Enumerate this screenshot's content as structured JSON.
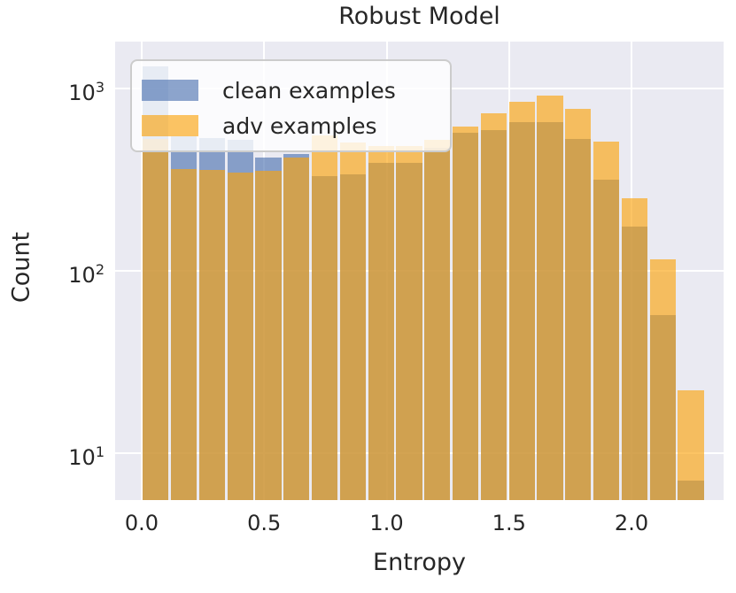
{
  "title": "Robust Model",
  "xlabel": "Entropy",
  "ylabel": "Count",
  "legend": {
    "items": [
      {
        "label": "clean examples",
        "series": "clean"
      },
      {
        "label": "adv examples",
        "series": "adv"
      }
    ]
  },
  "colors": {
    "plot_background": "#eaeaf2",
    "gridline": "#ffffff",
    "clean_fill": "rgba(76,114,176,0.64)",
    "adv_fill": "rgba(250,163,12,0.64)",
    "clean_base": "#4C72B0",
    "adv_base": "#FAA30C",
    "text": "#262626",
    "legend_background": "rgba(255,255,255,0.8)",
    "legend_border": "#cccccc"
  },
  "chart_data": {
    "type": "histogram",
    "subtype": "overlaid-histograms-log-y",
    "title": "Robust Model",
    "xlabel": "Entropy",
    "ylabel": "Count",
    "bin_start": 0.0,
    "bin_width": 0.115,
    "bin_count": 20,
    "bin_edges": [
      0.0,
      0.115,
      0.23,
      0.345,
      0.46,
      0.575,
      0.69,
      0.805,
      0.92,
      1.035,
      1.15,
      1.265,
      1.38,
      1.495,
      1.61,
      1.725,
      1.84,
      1.955,
      2.07,
      2.185,
      2.3
    ],
    "series": [
      {
        "name": "clean examples",
        "values": [
          1320,
          545,
          533,
          520,
          420,
          437,
          330,
          338,
          390,
          390,
          470,
          570,
          592,
          657,
          654,
          530,
          316,
          174,
          57,
          7
        ]
      },
      {
        "name": "adv examples",
        "values": [
          530,
          363,
          358,
          344,
          354,
          420,
          550,
          508,
          483,
          483,
          520,
          618,
          733,
          845,
          917,
          776,
          512,
          250,
          115,
          22
        ]
      }
    ],
    "y_scale": "log",
    "ylim": [
      5.5,
      1810
    ],
    "xlim": [
      -0.1085,
      2.376
    ],
    "grid": true,
    "legend_position": "upper left",
    "x_ticks": [
      {
        "value": 0.0,
        "label": "0.0"
      },
      {
        "value": 0.5,
        "label": "0.5"
      },
      {
        "value": 1.0,
        "label": "1.0"
      },
      {
        "value": 1.5,
        "label": "1.5"
      },
      {
        "value": 2.0,
        "label": "2.0"
      }
    ],
    "y_ticks": [
      {
        "value": 1000,
        "base": "10",
        "exp": "3"
      },
      {
        "value": 100,
        "base": "10",
        "exp": "2"
      },
      {
        "value": 10,
        "base": "10",
        "exp": "1"
      }
    ]
  }
}
